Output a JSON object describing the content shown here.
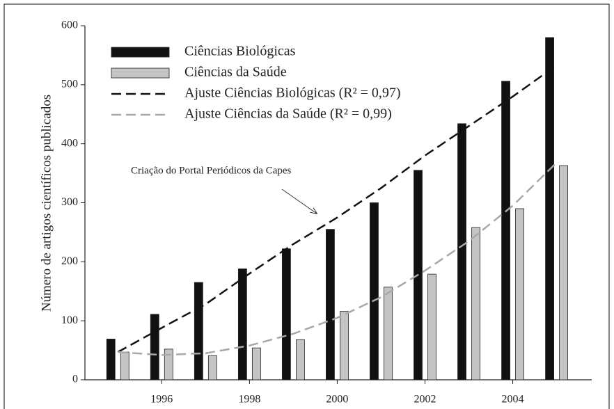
{
  "chart_data": {
    "type": "bar",
    "y_label": "Número de artigos científicos publicados",
    "annotation": "Criação do Portal Periódicos da Capes",
    "x": [
      1995,
      1996,
      1997,
      1998,
      1999,
      2000,
      2001,
      2002,
      2003,
      2004,
      2005
    ],
    "series": [
      {
        "name": "Ciências Biológicas",
        "type": "bar",
        "color": "#111111",
        "values": [
          69,
          111,
          165,
          188,
          222,
          255,
          300,
          355,
          434,
          506,
          580
        ]
      },
      {
        "name": "Ciências da Saúde",
        "type": "bar",
        "color": "#c4c4c4",
        "values": [
          47,
          52,
          41,
          54,
          68,
          116,
          157,
          179,
          258,
          290,
          363
        ]
      },
      {
        "name": "Ajuste Ciências Biológicas (R² = 0,97)",
        "type": "line",
        "dashed": true,
        "color": "#111111",
        "values": [
          47,
          88,
          128,
          180,
          230,
          275,
          325,
          380,
          430,
          480,
          533
        ]
      },
      {
        "name": "Ajuste Ciências da Saúde (R² = 0,99)",
        "type": "line",
        "dashed": true,
        "color": "#a8a8a8",
        "values": [
          47,
          42,
          45,
          58,
          78,
          105,
          140,
          185,
          235,
          295,
          368
        ]
      }
    ],
    "xlim": [
      1994.25,
      2005.8
    ],
    "xticks": [
      1996,
      1998,
      2000,
      2002,
      2004
    ],
    "ylim": [
      0,
      600
    ],
    "yticks": [
      0,
      100,
      200,
      300,
      400,
      500,
      600
    ]
  }
}
